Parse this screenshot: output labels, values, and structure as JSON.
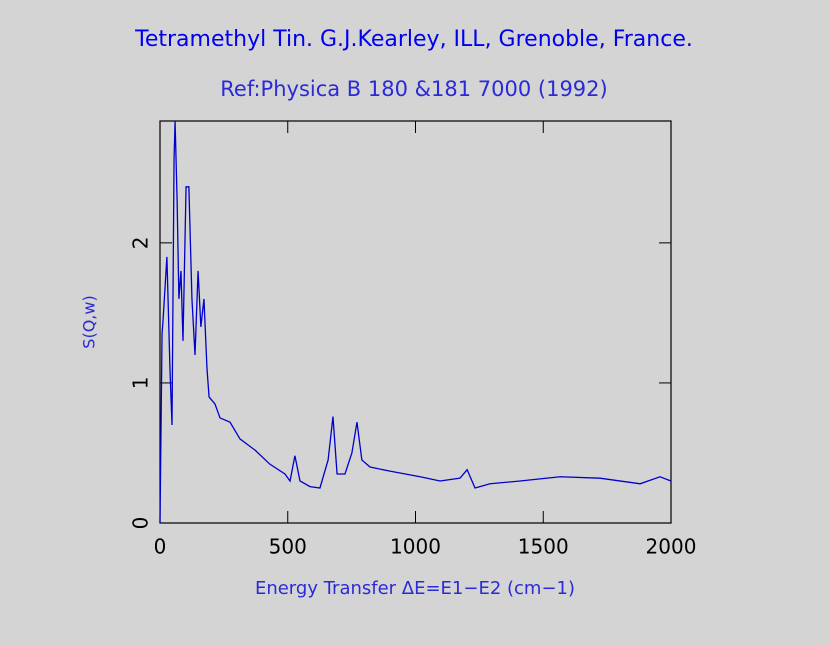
{
  "chart_data": {
    "type": "line",
    "title": "Tetramethyl Tin. G.J.Kearley, ILL, Grenoble, France.",
    "subtitle": "Ref:Physica B 180 &181 7000 (1992)",
    "x_label": "Energy Transfer ΔE=E1−E2 (cm−1)",
    "y_label": "S(Q,w)",
    "xlim": [
      0,
      2000
    ],
    "xticks": [
      0,
      500,
      1000,
      1500,
      2000
    ],
    "ylim": [
      0,
      2.87
    ],
    "yticks": [
      0,
      1,
      2
    ],
    "series": [
      {
        "color": "#0000cc",
        "x": [
          0,
          8,
          12,
          27,
          39,
          47,
          55,
          59,
          67,
          74,
          82,
          90,
          102,
          113,
          125,
          137,
          149,
          160,
          172,
          184,
          192,
          215,
          235,
          274,
          313,
          372,
          430,
          489,
          509,
          528,
          548,
          587,
          626,
          658,
          677,
          693,
          724,
          751,
          771,
          790,
          822,
          900,
          1018,
          1096,
          1174,
          1202,
          1233,
          1292,
          1409,
          1566,
          1722,
          1879,
          1957,
          2000
        ],
        "values": [
          0,
          1.35,
          1.45,
          1.9,
          1.1,
          0.7,
          2.6,
          2.87,
          2.3,
          1.6,
          1.8,
          1.3,
          2.4,
          2.4,
          1.6,
          1.2,
          1.8,
          1.4,
          1.6,
          1.1,
          0.9,
          0.85,
          0.75,
          0.72,
          0.6,
          0.52,
          0.42,
          0.35,
          0.3,
          0.48,
          0.3,
          0.26,
          0.25,
          0.45,
          0.76,
          0.35,
          0.35,
          0.5,
          0.72,
          0.45,
          0.4,
          0.37,
          0.33,
          0.3,
          0.32,
          0.38,
          0.25,
          0.28,
          0.3,
          0.33,
          0.32,
          0.28,
          0.33,
          0.3
        ]
      }
    ]
  }
}
